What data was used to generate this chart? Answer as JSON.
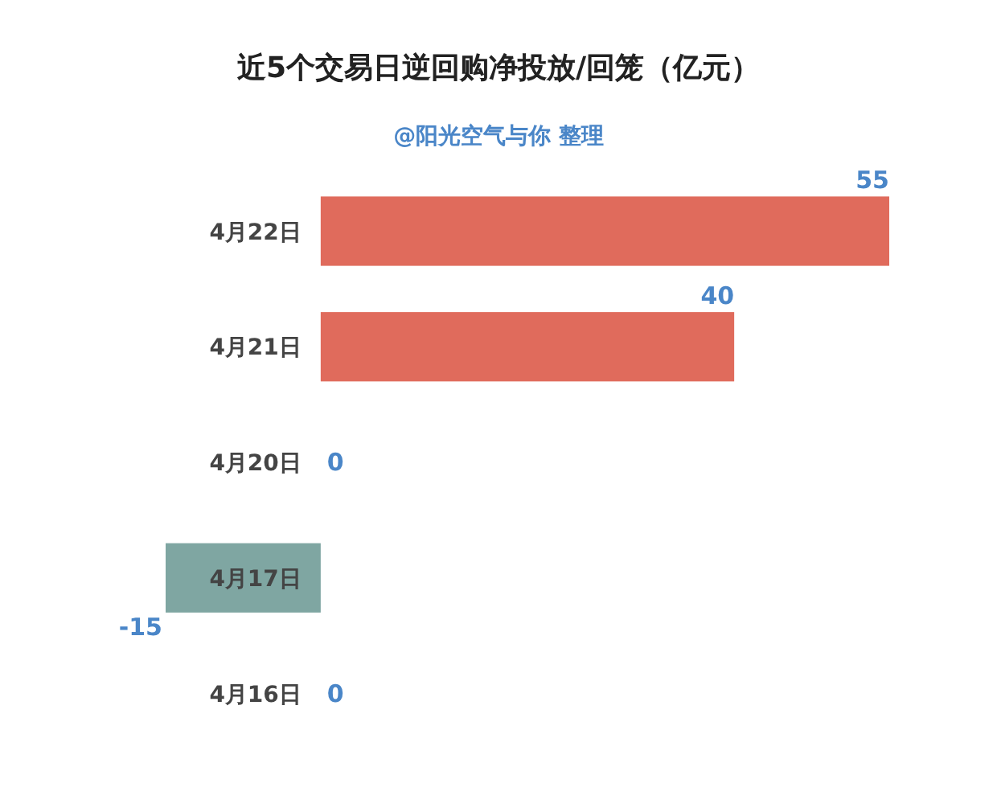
{
  "chart_data": {
    "type": "bar",
    "orientation": "horizontal",
    "title": "近5个交易日逆回购净投放/回笼（亿元）",
    "subtitle": "@阳光空气与你 整理",
    "categories": [
      "4月22日",
      "4月21日",
      "4月20日",
      "4月17日",
      "4月16日"
    ],
    "values": [
      55,
      40,
      0,
      -15,
      0
    ],
    "colors": [
      "#e06b5c",
      "#e06b5c",
      "#e06b5c",
      "#7fa6a2",
      "#7fa6a2"
    ],
    "xlim": [
      -15,
      55
    ],
    "data_labels": true
  }
}
